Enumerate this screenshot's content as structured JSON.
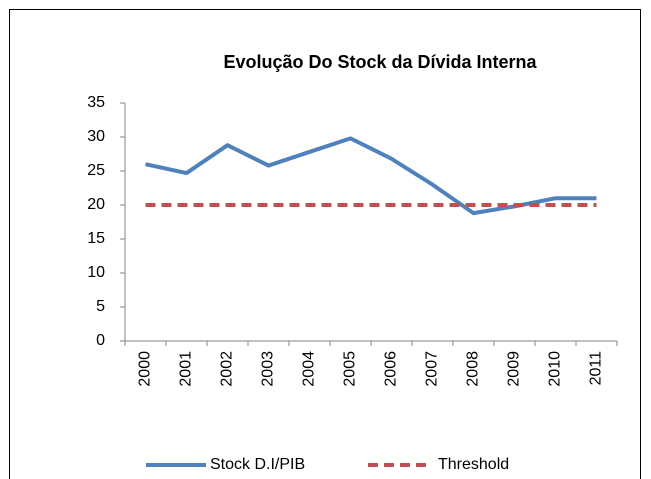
{
  "chart_data": {
    "type": "line",
    "title": "Evolução Do Stock da Dívida Interna",
    "categories": [
      "2000",
      "2001",
      "2002",
      "2003",
      "2004",
      "2005",
      "2006",
      "2007",
      "2008",
      "2009",
      "2010",
      "2011"
    ],
    "series": [
      {
        "name": "Stock D.I/PIB",
        "color": "#4f81bd",
        "dash": false,
        "values": [
          26,
          24.7,
          28.8,
          25.8,
          27.8,
          29.8,
          26.8,
          23,
          18.8,
          19.8,
          21,
          21
        ]
      },
      {
        "name": "Threshold",
        "color": "#c0504d",
        "dash": true,
        "values": [
          20,
          20,
          20,
          20,
          20,
          20,
          20,
          20,
          20,
          20,
          20,
          20
        ]
      }
    ],
    "ylim": [
      0,
      35
    ],
    "yticks": [
      0,
      5,
      10,
      15,
      20,
      25,
      30,
      35
    ],
    "legend": "bottom"
  }
}
